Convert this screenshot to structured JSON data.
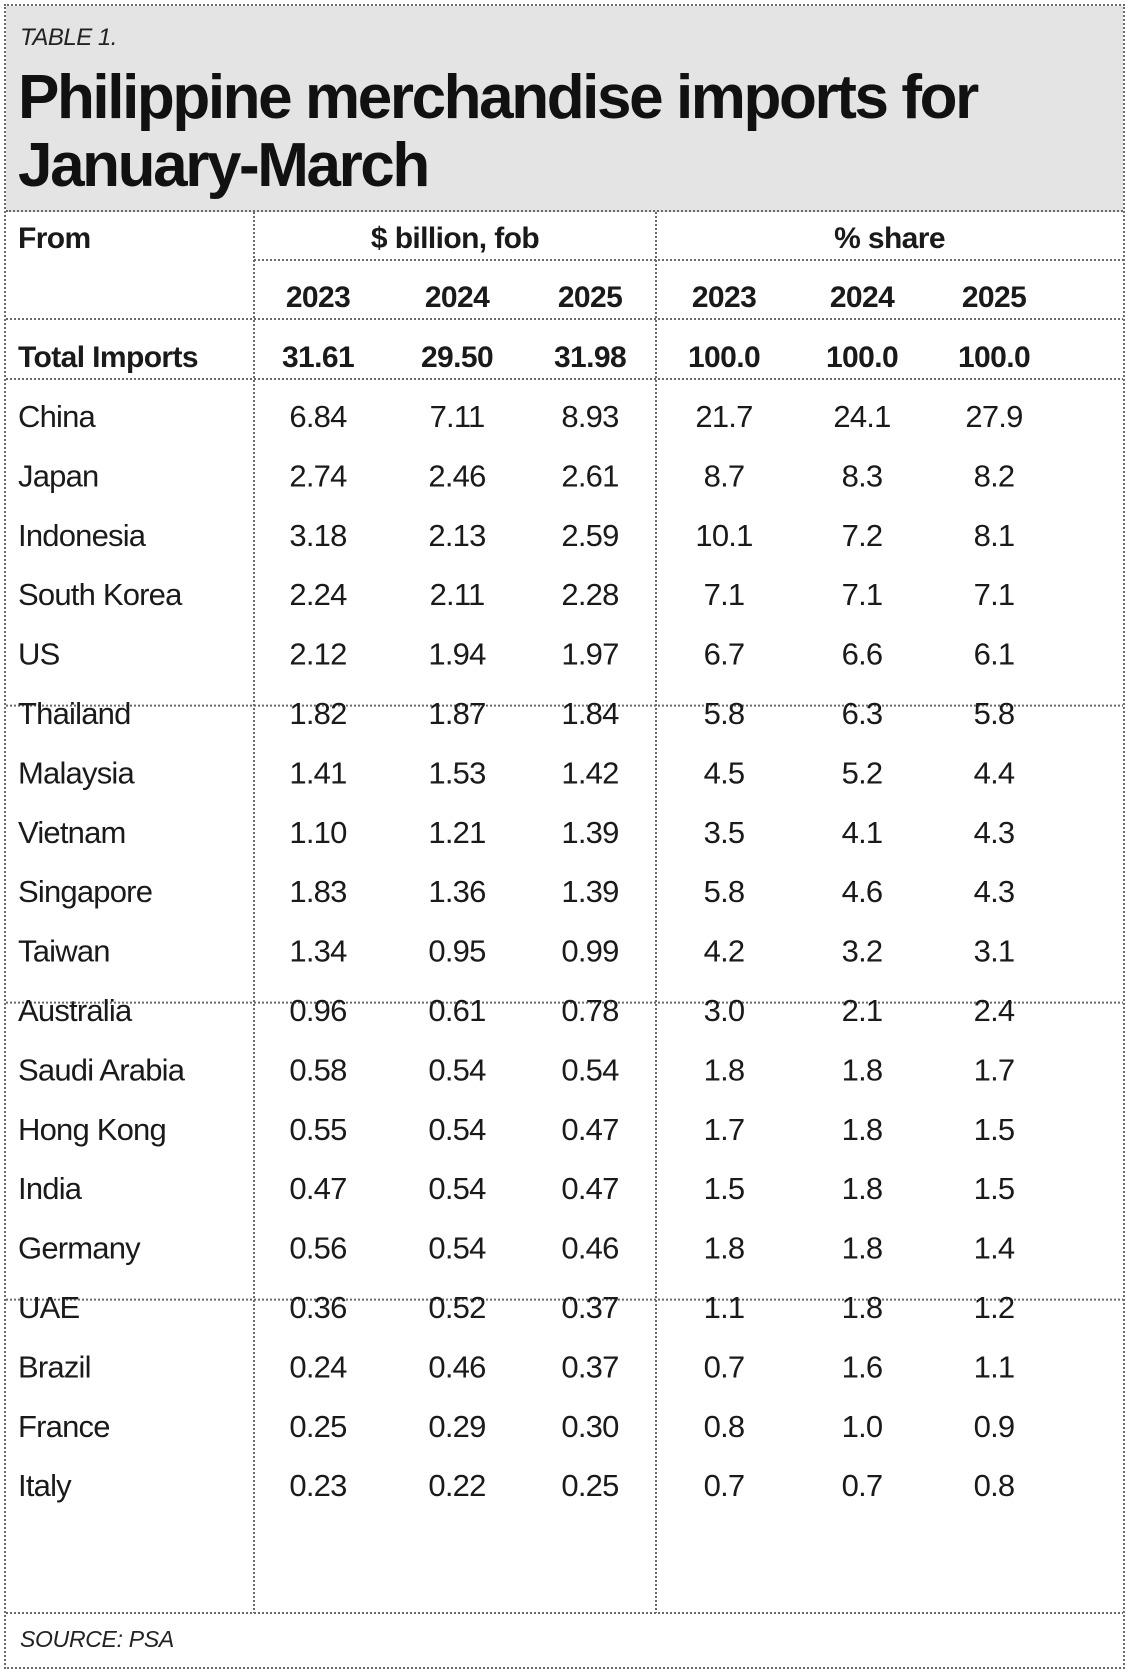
{
  "table": {
    "label": "TABLE 1.",
    "title": "Philippine merchandise imports for January-March",
    "source": "SOURCE: PSA"
  },
  "chart_data": {
    "type": "table",
    "row_header": "From",
    "column_groups": [
      {
        "label": "$ billion, fob",
        "years": [
          "2023",
          "2024",
          "2025"
        ]
      },
      {
        "label": "% share",
        "years": [
          "2023",
          "2024",
          "2025"
        ]
      }
    ],
    "total": {
      "label": "Total Imports",
      "usd_billion_fob": [
        "31.61",
        "29.50",
        "31.98"
      ],
      "pct_share": [
        "100.0",
        "100.0",
        "100.0"
      ]
    },
    "rows": [
      {
        "country": "China",
        "usd_billion_fob": [
          "6.84",
          "7.11",
          "8.93"
        ],
        "pct_share": [
          "21.7",
          "24.1",
          "27.9"
        ]
      },
      {
        "country": "Japan",
        "usd_billion_fob": [
          "2.74",
          "2.46",
          "2.61"
        ],
        "pct_share": [
          "8.7",
          "8.3",
          "8.2"
        ]
      },
      {
        "country": "Indonesia",
        "usd_billion_fob": [
          "3.18",
          "2.13",
          "2.59"
        ],
        "pct_share": [
          "10.1",
          "7.2",
          "8.1"
        ]
      },
      {
        "country": "South Korea",
        "usd_billion_fob": [
          "2.24",
          "2.11",
          "2.28"
        ],
        "pct_share": [
          "7.1",
          "7.1",
          "7.1"
        ]
      },
      {
        "country": "US",
        "usd_billion_fob": [
          "2.12",
          "1.94",
          "1.97"
        ],
        "pct_share": [
          "6.7",
          "6.6",
          "6.1"
        ]
      },
      {
        "country": "Thailand",
        "usd_billion_fob": [
          "1.82",
          "1.87",
          "1.84"
        ],
        "pct_share": [
          "5.8",
          "6.3",
          "5.8"
        ]
      },
      {
        "country": "Malaysia",
        "usd_billion_fob": [
          "1.41",
          "1.53",
          "1.42"
        ],
        "pct_share": [
          "4.5",
          "5.2",
          "4.4"
        ]
      },
      {
        "country": "Vietnam",
        "usd_billion_fob": [
          "1.10",
          "1.21",
          "1.39"
        ],
        "pct_share": [
          "3.5",
          "4.1",
          "4.3"
        ]
      },
      {
        "country": "Singapore",
        "usd_billion_fob": [
          "1.83",
          "1.36",
          "1.39"
        ],
        "pct_share": [
          "5.8",
          "4.6",
          "4.3"
        ]
      },
      {
        "country": "Taiwan",
        "usd_billion_fob": [
          "1.34",
          "0.95",
          "0.99"
        ],
        "pct_share": [
          "4.2",
          "3.2",
          "3.1"
        ]
      },
      {
        "country": "Australia",
        "usd_billion_fob": [
          "0.96",
          "0.61",
          "0.78"
        ],
        "pct_share": [
          "3.0",
          "2.1",
          "2.4"
        ]
      },
      {
        "country": "Saudi Arabia",
        "usd_billion_fob": [
          "0.58",
          "0.54",
          "0.54"
        ],
        "pct_share": [
          "1.8",
          "1.8",
          "1.7"
        ]
      },
      {
        "country": "Hong Kong",
        "usd_billion_fob": [
          "0.55",
          "0.54",
          "0.47"
        ],
        "pct_share": [
          "1.7",
          "1.8",
          "1.5"
        ]
      },
      {
        "country": "India",
        "usd_billion_fob": [
          "0.47",
          "0.54",
          "0.47"
        ],
        "pct_share": [
          "1.5",
          "1.8",
          "1.5"
        ]
      },
      {
        "country": "Germany",
        "usd_billion_fob": [
          "0.56",
          "0.54",
          "0.46"
        ],
        "pct_share": [
          "1.8",
          "1.8",
          "1.4"
        ]
      },
      {
        "country": "UAE",
        "usd_billion_fob": [
          "0.36",
          "0.52",
          "0.37"
        ],
        "pct_share": [
          "1.1",
          "1.8",
          "1.2"
        ]
      },
      {
        "country": "Brazil",
        "usd_billion_fob": [
          "0.24",
          "0.46",
          "0.37"
        ],
        "pct_share": [
          "0.7",
          "1.6",
          "1.1"
        ]
      },
      {
        "country": "France",
        "usd_billion_fob": [
          "0.25",
          "0.29",
          "0.30"
        ],
        "pct_share": [
          "0.8",
          "1.0",
          "0.9"
        ]
      },
      {
        "country": "Italy",
        "usd_billion_fob": [
          "0.23",
          "0.22",
          "0.25"
        ],
        "pct_share": [
          "0.7",
          "0.7",
          "0.8"
        ]
      }
    ]
  },
  "colors": {
    "title_background": "#e4e4e4",
    "rule": "#6a6a6a",
    "text": "#111111"
  }
}
